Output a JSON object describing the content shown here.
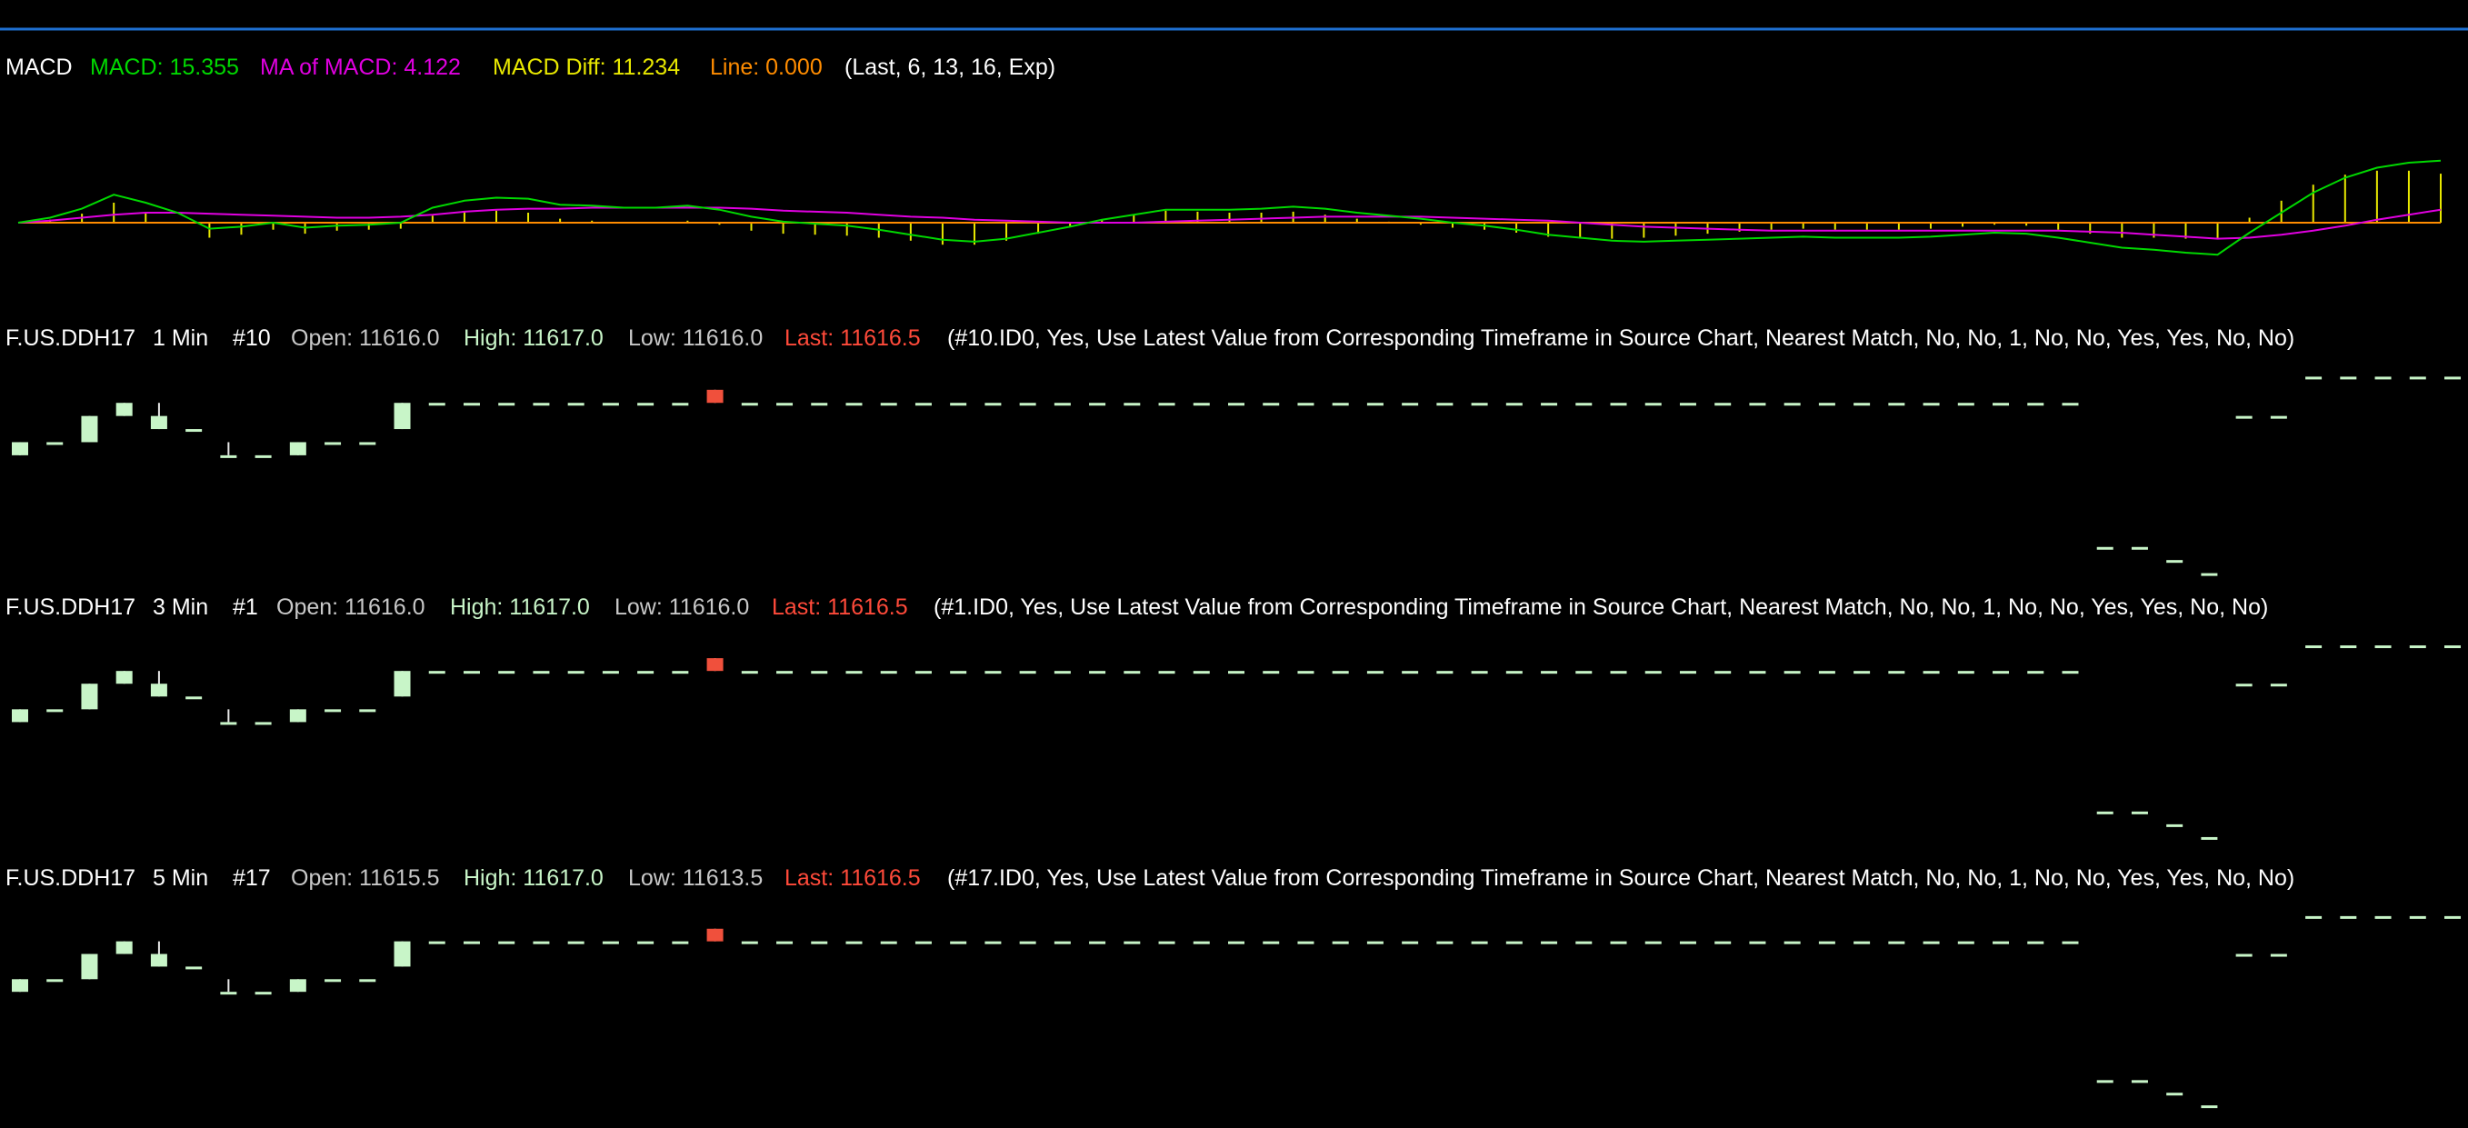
{
  "colors": {
    "background": "#000000",
    "separator": "#1e6fd0",
    "white": "#ffffff",
    "gray": "#c8c8c8",
    "green": "#00d800",
    "magenta": "#e000e0",
    "yellow": "#e8e800",
    "orange": "#ff8c00",
    "high": "#c8f5c8",
    "last": "#ff4a3a",
    "up_fill": "#c8f5c8",
    "down_fill": "#f0503c"
  },
  "macd_header": {
    "name": "MACD",
    "macd": "MACD: 15.355",
    "ma": "MA of MACD: 4.122",
    "diff": "MACD Diff: 11.234",
    "line": "Line: 0.000",
    "params": "(Last, 6, 13, 16, Exp)"
  },
  "panels": [
    {
      "symbol": "F.US.DDH17",
      "tf": "1 Min",
      "id": "#10",
      "open": "Open: 11616.0",
      "high": "High: 11617.0",
      "low": "Low: 11616.0",
      "last": "Last: 11616.5",
      "params": "(#10.ID0, Yes, Use Latest Value from Corresponding Timeframe in Source Chart, Nearest Match, No, No, 1, No, No, Yes, Yes, No, No)"
    },
    {
      "symbol": "F.US.DDH17",
      "tf": "3 Min",
      "id": "#1",
      "open": "Open: 11616.0",
      "high": "High: 11617.0",
      "low": "Low: 11616.0",
      "last": "Last: 11616.5",
      "params": "(#1.ID0, Yes, Use Latest Value from Corresponding Timeframe in Source Chart, Nearest Match, No, No, 1, No, No, Yes, Yes, No, No)"
    },
    {
      "symbol": "F.US.DDH17",
      "tf": "5 Min",
      "id": "#17",
      "open": "Open: 11615.5",
      "high": "High: 11617.0",
      "low": "Low: 11613.5",
      "last": "Last: 11616.5",
      "params": "(#17.ID0, Yes, Use Latest Value from Corresponding Timeframe in Source Chart, Nearest Match, No, No, 1, No, No, Yes, Yes, No, No)"
    }
  ],
  "chart_data": {
    "type": "line",
    "macd": {
      "macd_line": [
        0,
        5,
        14,
        28,
        20,
        10,
        -6,
        -4,
        0,
        -5,
        -3,
        -2,
        0,
        15,
        22,
        25,
        24,
        18,
        17,
        15,
        15,
        17,
        13,
        6,
        1,
        -1,
        -3,
        -7,
        -12,
        -17,
        -19,
        -16,
        -10,
        -4,
        3,
        8,
        13,
        13,
        13,
        14,
        16,
        14,
        10,
        7,
        4,
        0,
        -3,
        -7,
        -12,
        -15,
        -18,
        -19,
        -18,
        -17,
        -16,
        -15,
        -14,
        -15,
        -15,
        -15,
        -14,
        -12,
        -10,
        -11,
        -15,
        -20,
        -25,
        -27,
        -30,
        -32,
        -10,
        10,
        30,
        45,
        55,
        60,
        62
      ],
      "ma_line": [
        0,
        2,
        5,
        8,
        10,
        10,
        9,
        8,
        7,
        6,
        5,
        5,
        6,
        8,
        11,
        13,
        14,
        14,
        15,
        15,
        15,
        15,
        15,
        14,
        12,
        11,
        10,
        8,
        6,
        5,
        3,
        2,
        1,
        0,
        0,
        0,
        1,
        2,
        3,
        4,
        5,
        6,
        6,
        6,
        6,
        5,
        4,
        3,
        2,
        0,
        -2,
        -4,
        -5,
        -6,
        -7,
        -8,
        -8,
        -8,
        -8,
        -8,
        -8,
        -8,
        -8,
        -8,
        -8,
        -9,
        -10,
        -12,
        -14,
        -16,
        -15,
        -12,
        -8,
        -3,
        3,
        8,
        13
      ],
      "diff_bars": [
        0,
        3,
        9,
        20,
        10,
        0,
        -15,
        -12,
        -7,
        -11,
        -8,
        -7,
        -6,
        7,
        11,
        12,
        10,
        4,
        2,
        0,
        0,
        2,
        -2,
        -8,
        -11,
        -12,
        -13,
        -15,
        -18,
        -22,
        -22,
        -18,
        -11,
        -4,
        3,
        8,
        12,
        11,
        10,
        10,
        11,
        8,
        4,
        1,
        -2,
        -5,
        -7,
        -10,
        -14,
        -15,
        -16,
        -15,
        -13,
        -11,
        -9,
        -7,
        -6,
        -7,
        -7,
        -7,
        -6,
        -4,
        -2,
        -3,
        -7,
        -11,
        -15,
        -15,
        -16,
        -16,
        5,
        22,
        38,
        48,
        52,
        52,
        49
      ],
      "zero_line": 0
    },
    "panels": [
      {
        "timeframe": "1 Min",
        "price_range": [
          11609.0,
          11617.5
        ],
        "candles": [
          [
            11614,
            11614.5,
            11614,
            11614.5
          ],
          [
            11614.5,
            11614.5,
            11614.5,
            11614.5
          ],
          [
            11614.5,
            11615.5,
            11614.5,
            11615.5
          ],
          [
            11615.5,
            11616,
            11615.5,
            11616
          ],
          [
            11615,
            11616,
            11615,
            11615.5
          ],
          [
            11615,
            11615,
            11615,
            11615
          ],
          [
            11614,
            11614.5,
            11614,
            11614
          ],
          [
            11614,
            11614,
            11614,
            11614
          ],
          [
            11614,
            11614.5,
            11614,
            11614.5
          ],
          [
            11614.5,
            11614.5,
            11614.5,
            11614.5
          ],
          [
            11614.5,
            11614.5,
            11614.5,
            11614.5
          ],
          [
            11615,
            11616,
            11615,
            11616
          ],
          [
            11616,
            11616,
            11616,
            11616
          ],
          [
            11616,
            11616,
            11616,
            11616
          ],
          [
            11616,
            11616,
            11616,
            11616
          ],
          [
            11616,
            11616,
            11616,
            11616
          ],
          [
            11616,
            11616,
            11616,
            11616
          ],
          [
            11616,
            11616,
            11616,
            11616
          ],
          [
            11616,
            11616,
            11616,
            11616
          ],
          [
            11616,
            11616,
            11616,
            11616
          ],
          [
            11616.5,
            11616.5,
            11616,
            11616
          ],
          [
            11616,
            11616,
            11616,
            11616
          ],
          [
            11616,
            11616,
            11616,
            11616
          ],
          [
            11616,
            11616,
            11616,
            11616
          ],
          [
            11616,
            11616,
            11616,
            11616
          ],
          [
            11616,
            11616,
            11616,
            11616
          ],
          [
            11616,
            11616,
            11616,
            11616
          ],
          [
            11616,
            11616,
            11616,
            11616
          ],
          [
            11616,
            11616,
            11616,
            11616
          ],
          [
            11616,
            11616,
            11616,
            11616
          ],
          [
            11616,
            11616,
            11616,
            11616
          ],
          [
            11616,
            11616,
            11616,
            11616
          ],
          [
            11616,
            11616,
            11616,
            11616
          ],
          [
            11616,
            11616,
            11616,
            11616
          ],
          [
            11616,
            11616,
            11616,
            11616
          ],
          [
            11616,
            11616,
            11616,
            11616
          ],
          [
            11616,
            11616,
            11616,
            11616
          ],
          [
            11616,
            11616,
            11616,
            11616
          ],
          [
            11616,
            11616,
            11616,
            11616
          ],
          [
            11616,
            11616,
            11616,
            11616
          ],
          [
            11616,
            11616,
            11616,
            11616
          ],
          [
            11616,
            11616,
            11616,
            11616
          ],
          [
            11616,
            11616,
            11616,
            11616
          ],
          [
            11616,
            11616,
            11616,
            11616
          ],
          [
            11616,
            11616,
            11616,
            11616
          ],
          [
            11616,
            11616,
            11616,
            11616
          ],
          [
            11616,
            11616,
            11616,
            11616
          ],
          [
            11616,
            11616,
            11616,
            11616
          ],
          [
            11616,
            11616,
            11616,
            11616
          ],
          [
            11616,
            11616,
            11616,
            11616
          ],
          [
            11616,
            11616,
            11616,
            11616
          ],
          [
            11616,
            11616,
            11616,
            11616
          ],
          [
            11616,
            11616,
            11616,
            11616
          ],
          [
            11616,
            11616,
            11616,
            11616
          ],
          [
            11616,
            11616,
            11616,
            11616
          ],
          [
            11616,
            11616,
            11616,
            11616
          ],
          [
            11616,
            11616,
            11616,
            11616
          ],
          [
            11616,
            11616,
            11616,
            11616
          ],
          [
            11616,
            11616,
            11616,
            11616
          ],
          [
            11616,
            11616,
            11616,
            11616
          ],
          [
            11610.5,
            11610.5,
            11610.5,
            11610.5
          ],
          [
            11610.5,
            11610.5,
            11610.5,
            11610.5
          ],
          [
            11610,
            11610,
            11610,
            11610
          ],
          [
            11609.5,
            11609.5,
            11609.5,
            11609.5
          ],
          [
            11615.5,
            11615.5,
            11615.5,
            11615.5
          ],
          [
            11615.5,
            11615.5,
            11615.5,
            11615.5
          ],
          [
            11617,
            11617,
            11617,
            11617
          ],
          [
            11617,
            11617,
            11617,
            11617
          ],
          [
            11617,
            11617,
            11617,
            11617
          ],
          [
            11617,
            11617,
            11617,
            11617
          ],
          [
            11617,
            11617,
            11617,
            11617
          ]
        ]
      },
      {
        "timeframe": "3 Min",
        "price_range": [
          11609.0,
          11617.5
        ]
      },
      {
        "timeframe": "5 Min",
        "price_range": [
          11609.0,
          11617.5
        ]
      }
    ]
  }
}
